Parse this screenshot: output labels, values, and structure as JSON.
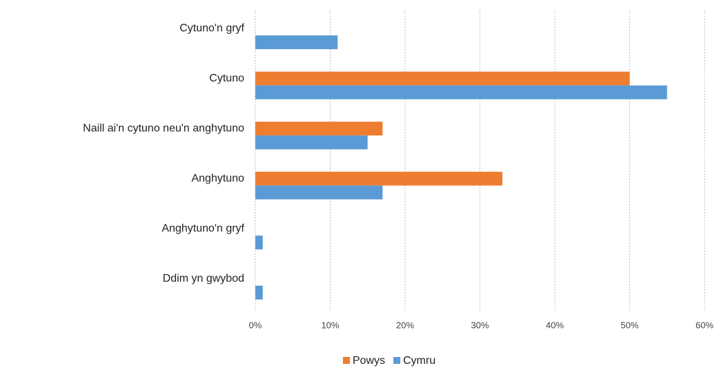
{
  "chart_data": {
    "type": "hbar",
    "categories": [
      "Cytuno'n gryf",
      "Cytuno",
      "Naill ai'n cytuno neu'n anghytuno",
      "Anghytuno",
      "Anghytuno'n gryf",
      "Ddim yn gwybod"
    ],
    "series": [
      {
        "name": "Powys",
        "color": "#ed7d31",
        "values": [
          0,
          50,
          17,
          33,
          0,
          0
        ]
      },
      {
        "name": "Cymru",
        "color": "#5b9bd5",
        "values": [
          11,
          55,
          15,
          17,
          1,
          1
        ]
      }
    ],
    "xlim": [
      0,
      60
    ],
    "xticks": [
      {
        "value": 0,
        "label": "0%"
      },
      {
        "value": 10,
        "label": "10%"
      },
      {
        "value": 20,
        "label": "20%"
      },
      {
        "value": 30,
        "label": "30%"
      },
      {
        "value": 40,
        "label": "40%"
      },
      {
        "value": 50,
        "label": "50%"
      },
      {
        "value": 60,
        "label": "60%"
      }
    ],
    "grid": true
  }
}
